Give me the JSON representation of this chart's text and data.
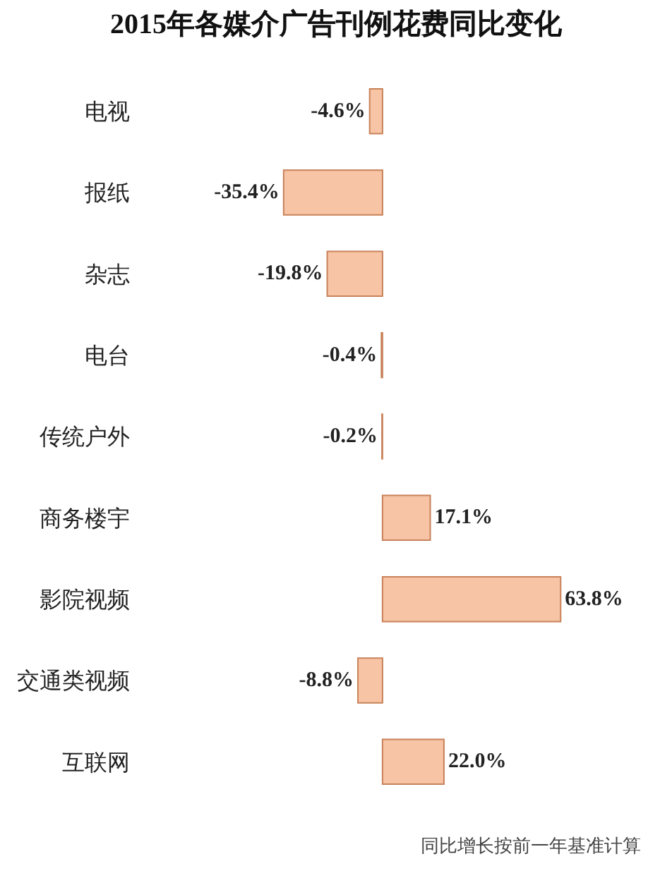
{
  "chart_data": {
    "type": "bar",
    "orientation": "horizontal",
    "title": "2015年各媒介广告刊例花费同比变化",
    "categories": [
      "电视",
      "报纸",
      "杂志",
      "电台",
      "传统户外",
      "商务楼宇",
      "影院视频",
      "交通类视频",
      "互联网"
    ],
    "values": [
      -4.6,
      -35.4,
      -19.8,
      -0.4,
      -0.2,
      17.1,
      63.8,
      -8.8,
      22.0
    ],
    "value_labels": [
      "-4.6%",
      "-35.4%",
      "-19.8%",
      "-0.4%",
      "-0.2%",
      "17.1%",
      "63.8%",
      "-8.8%",
      "22.0%"
    ],
    "color": "#f7c4a5",
    "annotations": [
      "同比增长按前一年基准计算"
    ]
  }
}
